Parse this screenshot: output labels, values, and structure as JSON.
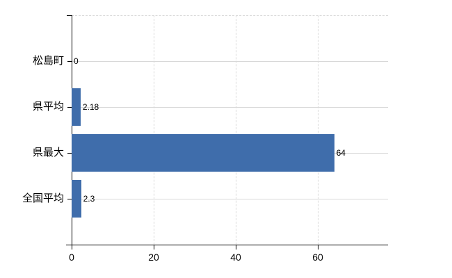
{
  "chart_data": {
    "type": "bar",
    "orientation": "horizontal",
    "categories": [
      "松島町",
      "県平均",
      "県最大",
      "全国平均"
    ],
    "values": [
      0,
      2.18,
      64,
      2.3
    ],
    "value_labels": [
      "0",
      "2.18",
      "64",
      "2.3"
    ],
    "x_tick_labels": [
      "0",
      "20",
      "40",
      "60"
    ],
    "x_tick_values": [
      0,
      20,
      40,
      60
    ],
    "xlim": [
      0,
      77
    ],
    "grid": {
      "horizontal_style": "solid",
      "vertical_style": "dashed",
      "top_border_style": "dashed"
    },
    "legend": "none",
    "colors": {
      "bar": "#3f6dab",
      "axis": "#000000",
      "gridline": "#d8d8d8",
      "text": "#000000",
      "background": "#ffffff"
    }
  }
}
